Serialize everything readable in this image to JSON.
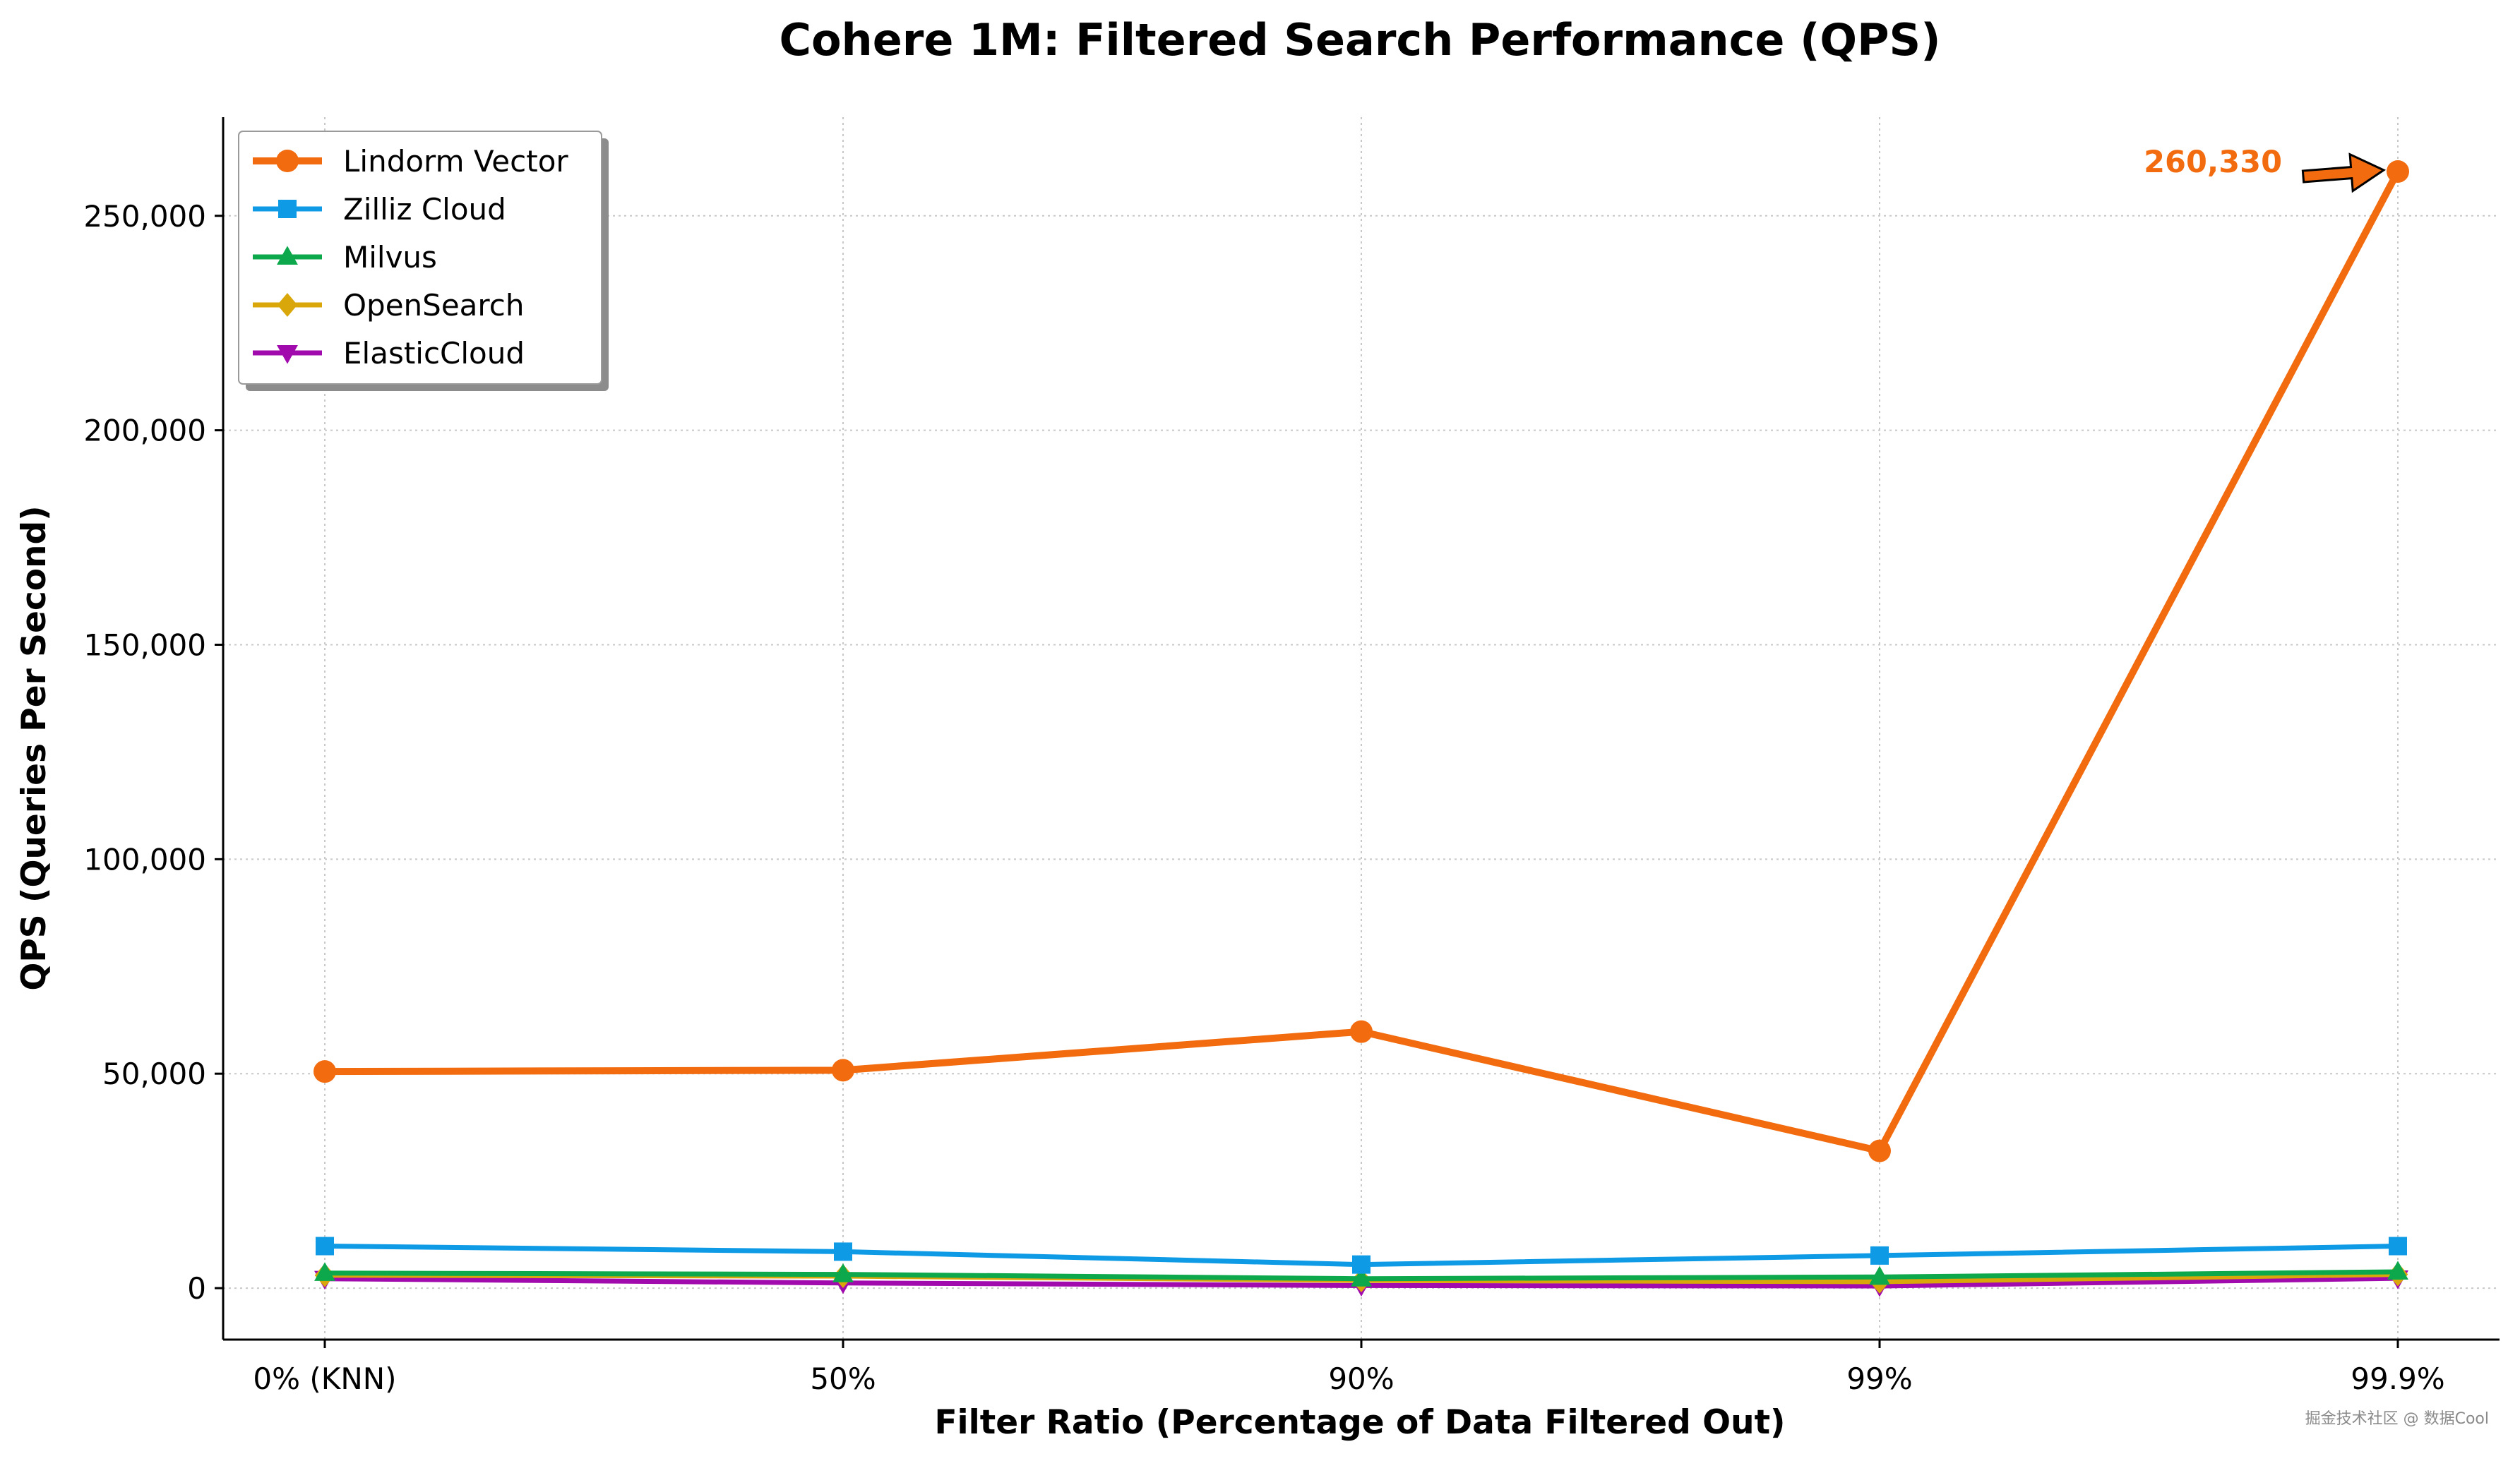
{
  "chart_data": {
    "type": "line",
    "title": "Cohere 1M: Filtered Search Performance (QPS)",
    "xlabel": "Filter Ratio (Percentage of Data Filtered Out)",
    "ylabel": "QPS (Queries Per Second)",
    "categories": [
      "0% (KNN)",
      "50%",
      "90%",
      "99%",
      "99.9%"
    ],
    "ylim": [
      -12000,
      273000
    ],
    "yticks": [
      0,
      50000,
      100000,
      150000,
      200000,
      250000
    ],
    "ytick_labels": [
      "0",
      "50,000",
      "100,000",
      "150,000",
      "200,000",
      "250,000"
    ],
    "grid": true,
    "legend_position": "top-left",
    "series": [
      {
        "name": "Lindorm Vector",
        "values": [
          50500,
          50800,
          59800,
          32000,
          260330
        ],
        "color": "#f26b0f",
        "marker": "circle"
      },
      {
        "name": "Zilliz Cloud",
        "values": [
          9800,
          8500,
          5500,
          7600,
          9800
        ],
        "color": "#0f9ae6",
        "marker": "square"
      },
      {
        "name": "Milvus",
        "values": [
          3500,
          3200,
          2200,
          2600,
          3800
        ],
        "color": "#0ea84c",
        "marker": "triangle-up"
      },
      {
        "name": "OpenSearch",
        "values": [
          3000,
          2800,
          1800,
          1500,
          3200
        ],
        "color": "#d9a70a",
        "marker": "diamond"
      },
      {
        "name": "ElasticCloud",
        "values": [
          2200,
          1200,
          600,
          500,
          2300
        ],
        "color": "#a10aad",
        "marker": "triangle-down"
      }
    ],
    "annotation": {
      "text": "260,330",
      "series": "Lindorm Vector",
      "category": "99.9%",
      "color": "#f26b0f"
    }
  },
  "watermark": "掘金技术社区 @ 数据Cool"
}
